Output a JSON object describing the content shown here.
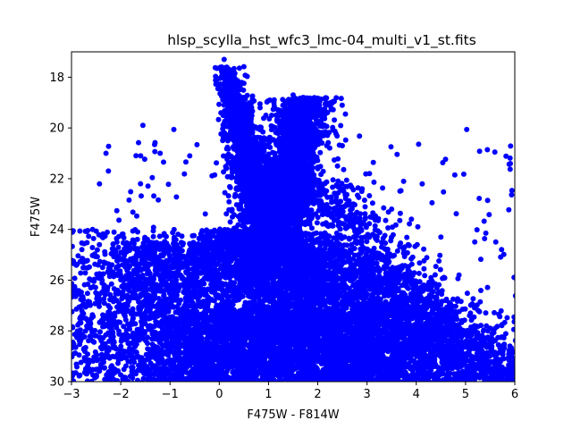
{
  "chart_data": {
    "type": "scatter",
    "title": "hlsp_scylla_hst_wfc3_lmc-04_multi_v1_st.fits",
    "xlabel": "F475W - F814W",
    "ylabel": "F475W",
    "xlim": [
      -3,
      6
    ],
    "ylim": [
      30,
      17
    ],
    "y_inverted": true,
    "xticks": [
      -3,
      -2,
      -1,
      0,
      1,
      2,
      3,
      4,
      5,
      6
    ],
    "yticks": [
      18,
      20,
      22,
      24,
      26,
      28,
      30
    ],
    "grid": false,
    "legend": "none",
    "marker": "circle",
    "color": "#0000ff",
    "series": [
      {
        "description_points": "Dense color-magnitude diagram; representative sampled points [x, y] in data units",
        "points": [
          [
            0.1,
            17.3
          ],
          [
            0.05,
            17.6
          ],
          [
            0.12,
            17.9
          ],
          [
            0.2,
            18.2
          ],
          [
            0.15,
            18.6
          ],
          [
            0.3,
            18.8
          ],
          [
            0.4,
            19.2
          ],
          [
            0.35,
            19.6
          ],
          [
            0.5,
            19.9
          ],
          [
            0.45,
            20.3
          ],
          [
            0.6,
            20.6
          ],
          [
            0.55,
            21.0
          ],
          [
            0.7,
            21.3
          ],
          [
            0.8,
            21.8
          ],
          [
            0.9,
            22.2
          ],
          [
            1.0,
            22.7
          ],
          [
            1.5,
            18.7
          ],
          [
            1.7,
            18.8
          ],
          [
            1.9,
            18.9
          ],
          [
            1.3,
            19.1
          ],
          [
            1.6,
            19.3
          ],
          [
            2.0,
            19.4
          ],
          [
            1.4,
            19.8
          ],
          [
            1.8,
            20.0
          ],
          [
            1.35,
            20.5
          ],
          [
            1.55,
            20.9
          ],
          [
            1.2,
            21.4
          ],
          [
            1.45,
            21.9
          ],
          [
            1.3,
            22.5
          ],
          [
            1.25,
            23.0
          ],
          [
            1.1,
            23.6
          ],
          [
            1.0,
            24.2
          ],
          [
            -2.3,
            21.0
          ],
          [
            -2.25,
            21.7
          ],
          [
            -1.55,
            19.9
          ],
          [
            -1.2,
            21.0
          ],
          [
            -0.6,
            21.1
          ],
          [
            -1.6,
            22.2
          ],
          [
            2.4,
            21.5
          ],
          [
            2.9,
            22.4
          ],
          [
            3.5,
            23.2
          ],
          [
            3.9,
            23.6
          ],
          [
            4.5,
            24.3
          ],
          [
            4.3,
            25.9
          ],
          [
            5.1,
            27.3
          ],
          [
            5.6,
            27.9
          ],
          [
            5.9,
            28.6
          ],
          [
            6.0,
            29.3
          ]
        ]
      }
    ]
  }
}
